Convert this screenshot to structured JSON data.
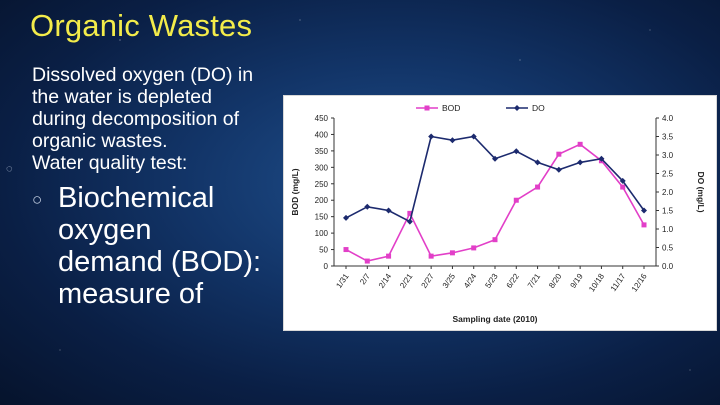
{
  "slide": {
    "title": "Organic Wastes",
    "paragraph": "Dissolved oxygen (DO) in the water is depleted during decomposition of organic wastes.",
    "bullet": "Water quality test:",
    "sub_bullet": "Biochemical oxygen demand (BOD): measure of",
    "bullet_l1_glyph": "◌",
    "bullet_l2_glyph": "○"
  },
  "chart_data": {
    "type": "line",
    "title": "",
    "xlabel": "Sampling date (2010)",
    "ylabel": "BOD (mg/L)",
    "y2label": "DO (mg/L)",
    "categories": [
      "1/31",
      "2/7",
      "2/14",
      "2/21",
      "2/27",
      "3/25",
      "4/24",
      "5/23",
      "6/22",
      "7/21",
      "8/20",
      "9/19",
      "10/18",
      "11/17",
      "12/16"
    ],
    "series": [
      {
        "name": "BOD",
        "axis": "left",
        "color": "#e23fc8",
        "marker": "square",
        "values": [
          50,
          15,
          30,
          160,
          30,
          40,
          55,
          80,
          200,
          240,
          340,
          370,
          320,
          240,
          125
        ]
      },
      {
        "name": "DO",
        "axis": "right",
        "color": "#1c2a6e",
        "marker": "diamond",
        "values": [
          1.3,
          1.6,
          1.5,
          1.2,
          3.5,
          3.4,
          3.5,
          2.9,
          3.1,
          2.8,
          2.6,
          2.8,
          2.9,
          2.3,
          1.5
        ]
      }
    ],
    "ylim": [
      0,
      450
    ],
    "y_ticks": [
      0,
      50,
      100,
      150,
      200,
      250,
      300,
      350,
      400,
      450
    ],
    "y2lim": [
      0,
      4.0
    ],
    "y2_ticks": [
      "0.0",
      "0.5",
      "1.0",
      "1.5",
      "2.0",
      "2.5",
      "3.0",
      "3.5",
      "4.0"
    ],
    "legend_position": "top",
    "grid": false
  }
}
